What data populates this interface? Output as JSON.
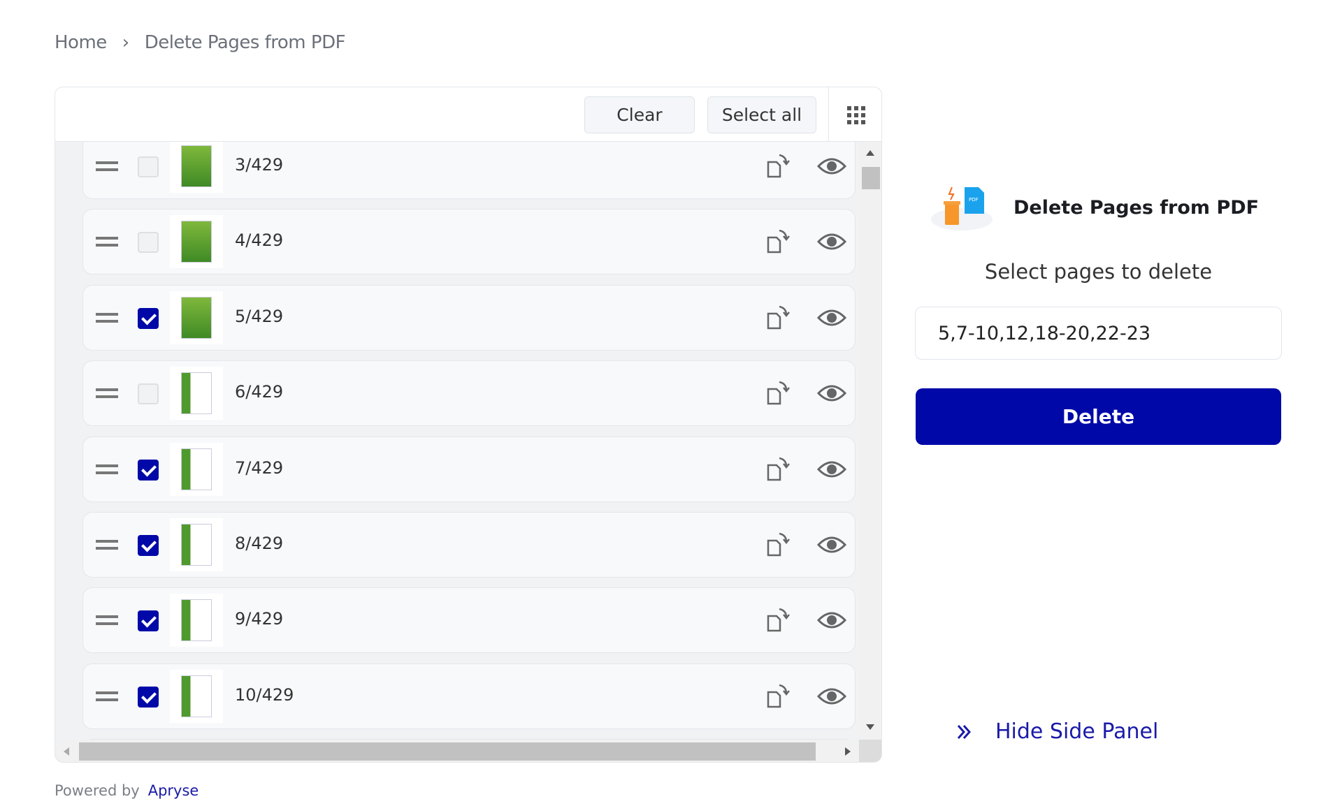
{
  "breadcrumb": {
    "home": "Home",
    "separator": "›",
    "current": "Delete Pages from PDF"
  },
  "toolbar": {
    "clear": "Clear",
    "select_all": "Select all",
    "grid_icon": "grid-view-icon"
  },
  "pages": [
    {
      "label": "3/429",
      "checked": false,
      "thumb": "cover"
    },
    {
      "label": "4/429",
      "checked": false,
      "thumb": "cover"
    },
    {
      "label": "5/429",
      "checked": true,
      "thumb": "cover"
    },
    {
      "label": "6/429",
      "checked": false,
      "thumb": "text"
    },
    {
      "label": "7/429",
      "checked": true,
      "thumb": "text"
    },
    {
      "label": "8/429",
      "checked": true,
      "thumb": "text"
    },
    {
      "label": "9/429",
      "checked": true,
      "thumb": "text"
    },
    {
      "label": "10/429",
      "checked": true,
      "thumb": "text"
    },
    {
      "label": "",
      "checked": false,
      "thumb": "text"
    }
  ],
  "side": {
    "title": "Delete Pages from PDF",
    "subtitle": "Select pages to delete",
    "pages_value": "5,7-10,12,18-20,22-23",
    "delete": "Delete",
    "hide": "Hide Side Panel"
  },
  "footer": {
    "powered_by": "Powered by",
    "brand": "Apryse"
  },
  "colors": {
    "accent": "#0009a8",
    "link": "#1a1aa8"
  }
}
